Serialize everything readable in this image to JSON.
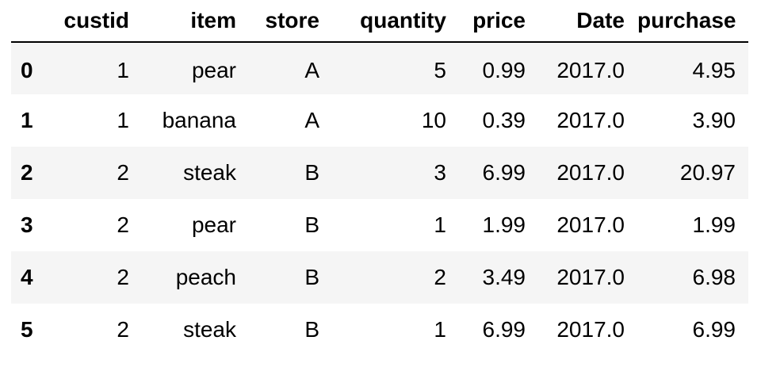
{
  "table": {
    "columns": [
      "custid",
      "item",
      "store",
      "quantity",
      "price",
      "Date",
      "purchase"
    ],
    "rows": [
      {
        "index": "0",
        "cells": [
          "1",
          "pear",
          "A",
          "5",
          "0.99",
          "2017.0",
          "4.95"
        ]
      },
      {
        "index": "1",
        "cells": [
          "1",
          "banana",
          "A",
          "10",
          "0.39",
          "2017.0",
          "3.90"
        ]
      },
      {
        "index": "2",
        "cells": [
          "2",
          "steak",
          "B",
          "3",
          "6.99",
          "2017.0",
          "20.97"
        ]
      },
      {
        "index": "3",
        "cells": [
          "2",
          "pear",
          "B",
          "1",
          "1.99",
          "2017.0",
          "1.99"
        ]
      },
      {
        "index": "4",
        "cells": [
          "2",
          "peach",
          "B",
          "2",
          "3.49",
          "2017.0",
          "6.98"
        ]
      },
      {
        "index": "5",
        "cells": [
          "2",
          "steak",
          "B",
          "1",
          "6.99",
          "2017.0",
          "6.99"
        ]
      }
    ]
  },
  "colors": {
    "text": "#000000",
    "stripe": "#f5f5f5",
    "background": "#ffffff",
    "header_rule": "#000000"
  }
}
